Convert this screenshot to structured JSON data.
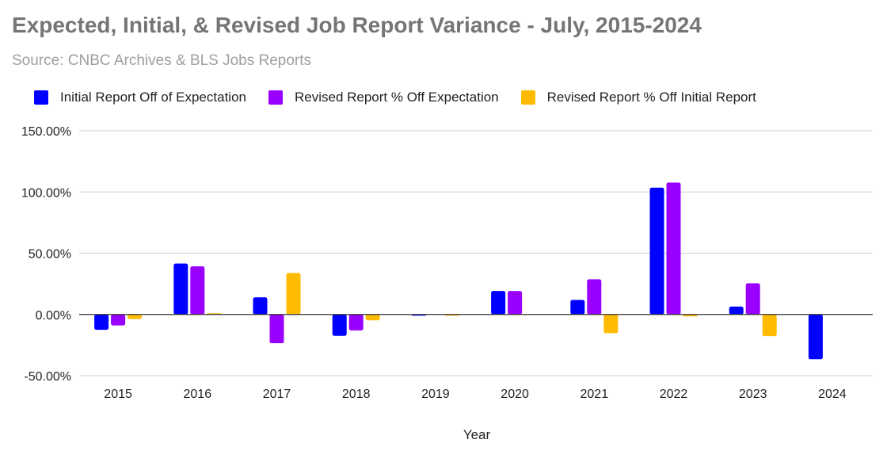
{
  "chart_data": {
    "type": "bar",
    "title": "Expected, Initial, & Revised Job Report Variance - July, 2015-2024",
    "subtitle": "Source: CNBC Archives & BLS Jobs Reports",
    "xlabel": "Year",
    "ylabel": "",
    "categories": [
      "2015",
      "2016",
      "2017",
      "2018",
      "2019",
      "2020",
      "2021",
      "2022",
      "2023",
      "2024"
    ],
    "series": [
      {
        "name": "Initial Report Off of Expectation",
        "color": "#0000FF",
        "values": [
          -12.5,
          41.6,
          14.0,
          -17.5,
          -0.5,
          19.2,
          11.9,
          103.6,
          6.5,
          -36.6
        ]
      },
      {
        "name": "Revised Report % Off Expectation",
        "color": "#9900FF",
        "values": [
          -9.0,
          39.3,
          -23.5,
          -13.0,
          0.0,
          19.2,
          28.7,
          107.7,
          25.5,
          0.0
        ]
      },
      {
        "name": "Revised Report % Off Initial Report",
        "color": "#FFBB00",
        "values": [
          -3.7,
          1.0,
          33.9,
          -4.8,
          -0.5,
          0.0,
          -15.3,
          -1.5,
          -17.7,
          0.0
        ]
      }
    ],
    "ylim": [
      -50,
      150
    ],
    "yticks": [
      150,
      100,
      50,
      0,
      -50
    ],
    "ytick_labels": [
      "150.00%",
      "100.00%",
      "50.00%",
      "0.00%",
      "-50.00%"
    ],
    "grid": true,
    "legend_position": "top-left"
  }
}
